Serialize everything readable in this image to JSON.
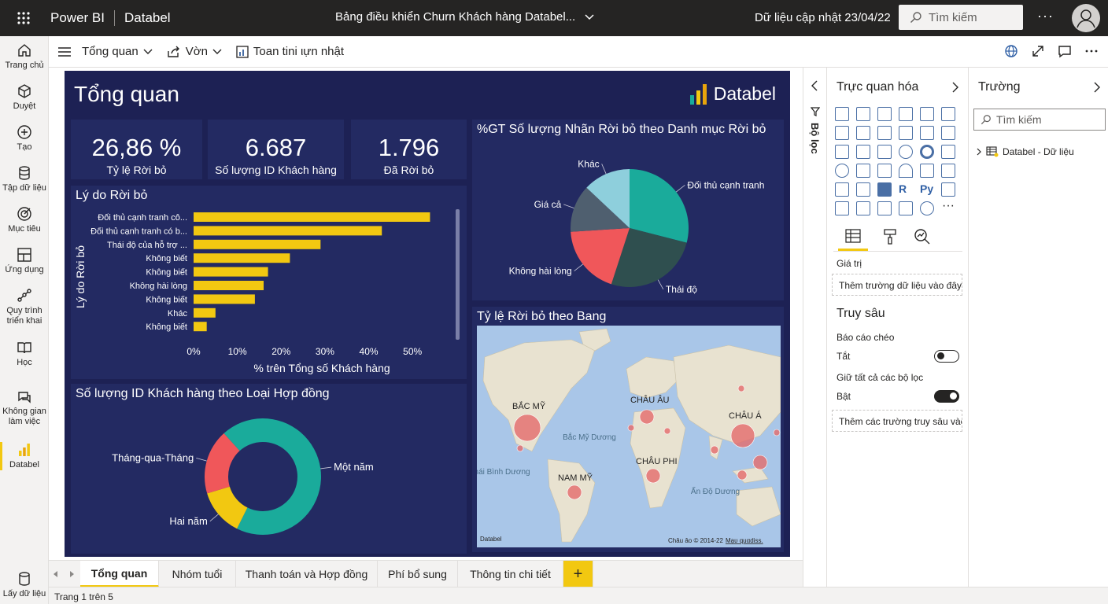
{
  "topbar": {
    "app": "Power BI",
    "workspace": "Databel",
    "report_title": "Bảng điều khiển Churn Khách hàng Databel...",
    "updated": "Dữ liệu cập nhật 23/04/22",
    "search_placeholder": "Tìm kiếm",
    "more": "···"
  },
  "leftnav": {
    "items": [
      {
        "label": "Trang chủ",
        "icon": "home-icon"
      },
      {
        "label": "Duyệt",
        "icon": "browse-icon"
      },
      {
        "label": "Tạo",
        "icon": "create-icon"
      },
      {
        "label": "Tập dữ liệu",
        "icon": "dataset-icon"
      },
      {
        "label": "Mục tiêu",
        "icon": "goals-icon"
      },
      {
        "label": "Ứng dụng",
        "icon": "apps-icon"
      },
      {
        "label": "Quy trình triển khai",
        "icon": "pipeline-icon"
      },
      {
        "label": "Học",
        "icon": "learn-icon"
      },
      {
        "label": "Không gian làm việc",
        "icon": "workspaces-icon"
      },
      {
        "label": "Databel",
        "icon": "report-icon"
      },
      {
        "label": "Lấy dữ liệu",
        "icon": "get-data-icon"
      }
    ]
  },
  "toolbar": {
    "page_menu": "Tổng quan",
    "export": "Vờn",
    "fullscreen": "Toan tini ιựn nhật"
  },
  "report": {
    "page_title": "Tổng quan",
    "logo_text": "Databel",
    "kpis": [
      {
        "value": "26,86 %",
        "label": "Tỷ lệ Rời bỏ"
      },
      {
        "value": "6.687",
        "label": "Số lượng ID Khách hàng"
      },
      {
        "value": "1.796",
        "label": "Đã Rời bỏ"
      }
    ],
    "bar_title": "Lý do Rời bỏ",
    "pie_title": "%GT Số lượng Nhãn Rời bỏ theo Danh mục Rời bỏ",
    "donut_title": "Số lượng ID Khách hàng theo Loại Hợp đồng",
    "map_title": "Tỷ lệ Rời bỏ theo Bang",
    "map_labels": {
      "na": "BẮC MỸ",
      "eu": "CHÂU ÂU",
      "asia": "CHÂU Á",
      "sa": "NAM MỸ",
      "af": "CHÂU PHI",
      "atl": "Bắc Mỹ Dương",
      "pac": "Thái Bình Dương",
      "ind": "Ấn Độ Dương"
    },
    "map_brand": "Databel",
    "map_copyright": "Châu âo © 2014-22",
    "map_link": "Mạυ quαdiss."
  },
  "chart_data": [
    {
      "type": "bar",
      "orientation": "horizontal",
      "title": "Lý do Rời bỏ",
      "categories": [
        "Đối thủ cạnh tranh cô...",
        "Đối thủ cạnh tranh có b...",
        "Thái độ của hỗ trợ ...",
        "Không biết",
        "Không biết",
        "Không hài lòng",
        "Không biết",
        "Khác",
        "Không biết"
      ],
      "values": [
        54,
        43,
        29,
        22,
        17,
        16,
        14,
        5,
        3
      ],
      "xlabel": "% trên Tổng số Khách hàng",
      "ylabel": "Lý do Rời bỏ",
      "xticks": [
        "0%",
        "10%",
        "20%",
        "30%",
        "40%",
        "50%"
      ],
      "xlim": [
        0,
        55
      ],
      "color": "#f2c811"
    },
    {
      "type": "pie",
      "title": "%GT Số lượng Nhãn Rời bỏ theo Danh mục Rời bỏ",
      "categories": [
        "Đối thủ cạnh tranh",
        "Thái độ",
        "Không hài lòng",
        "Giá cả",
        "Khác"
      ],
      "values": [
        29,
        26,
        19,
        13,
        13
      ],
      "colors": [
        "#1aab9b",
        "#2f4f4f",
        "#f0575a",
        "#4f5f6f",
        "#8ecfdc"
      ]
    },
    {
      "type": "pie",
      "variant": "donut",
      "title": "Số lượng ID Khách hàng theo Loại Hợp đồng",
      "categories": [
        "Một năm",
        "Hai năm",
        "Tháng-qua-Tháng"
      ],
      "values": [
        69,
        13,
        18
      ],
      "colors": [
        "#1aab9b",
        "#f2c811",
        "#f0575a"
      ]
    }
  ],
  "viz_pane": {
    "title": "Trực quan hóa",
    "values_label": "Giá trị",
    "values_drop": "Thêm trường dữ liệu vào đây",
    "drill_title": "Truy sâu",
    "cross_report": "Báo cáo chéo",
    "cross_state": "Tắt",
    "keep_filters": "Giữ tất cả các bộ lọc",
    "keep_state": "Bật",
    "drill_drop": "Thêm các trường truy sâu vào đây",
    "filters_tab": "Bộ lọc",
    "r_label": "R",
    "py_label": "Py"
  },
  "fields_pane": {
    "title": "Trường",
    "search_placeholder": "Tìm kiếm",
    "table": "Databel - Dữ liệu"
  },
  "tabs": [
    "Tổng quan",
    "Nhóm tuổi",
    "Thanh toán và Hợp đồng",
    "Phí bổ sung",
    "Thông tin chi tiết"
  ],
  "add_tab": "+",
  "status": "Trang 1 trên 5"
}
